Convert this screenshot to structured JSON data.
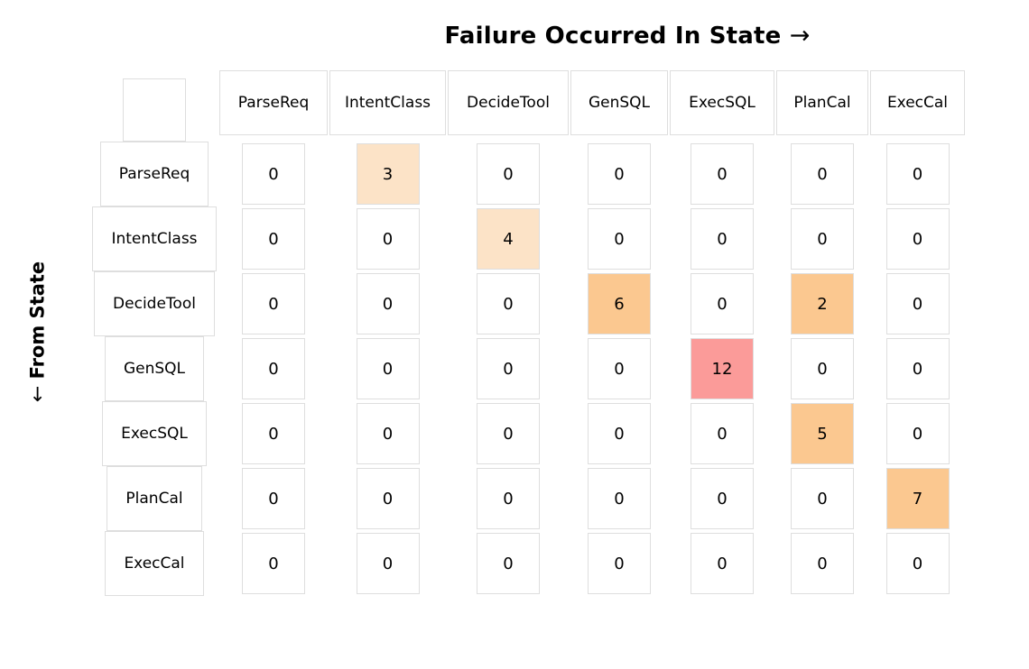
{
  "title": {
    "text": "Failure Occurred In State",
    "arrow": "→"
  },
  "y_axis_label": {
    "arrow": "←",
    "text": "From State"
  },
  "chart_data": {
    "type": "heatmap",
    "title": "Failure Occurred In State →",
    "xlabel": "Failure Occurred In State",
    "ylabel": "From State",
    "legend": "none",
    "columns": [
      "ParseReq",
      "IntentClass",
      "DecideTool",
      "GenSQL",
      "ExecSQL",
      "PlanCal",
      "ExecCal"
    ],
    "rows": [
      "ParseReq",
      "IntentClass",
      "DecideTool",
      "GenSQL",
      "ExecSQL",
      "PlanCal",
      "ExecCal"
    ],
    "values": [
      [
        0,
        3,
        0,
        0,
        0,
        0,
        0
      ],
      [
        0,
        0,
        4,
        0,
        0,
        0,
        0
      ],
      [
        0,
        0,
        0,
        6,
        0,
        2,
        0
      ],
      [
        0,
        0,
        0,
        0,
        12,
        0,
        0
      ],
      [
        0,
        0,
        0,
        0,
        0,
        5,
        0
      ],
      [
        0,
        0,
        0,
        0,
        0,
        0,
        7
      ],
      [
        0,
        0,
        0,
        0,
        0,
        0,
        0
      ]
    ],
    "cell_color_keys": [
      [
        "none",
        "low",
        "none",
        "none",
        "none",
        "none",
        "none"
      ],
      [
        "none",
        "none",
        "low",
        "none",
        "none",
        "none",
        "none"
      ],
      [
        "none",
        "none",
        "none",
        "mid",
        "none",
        "mid",
        "none"
      ],
      [
        "none",
        "none",
        "none",
        "none",
        "high",
        "none",
        "none"
      ],
      [
        "none",
        "none",
        "none",
        "none",
        "none",
        "mid",
        "none"
      ],
      [
        "none",
        "none",
        "none",
        "none",
        "none",
        "none",
        "mid"
      ],
      [
        "none",
        "none",
        "none",
        "none",
        "none",
        "none",
        "none"
      ]
    ],
    "value_range": [
      0,
      12
    ]
  },
  "colors": {
    "none": "#ffffff",
    "low": "#fce3c7",
    "mid": "#fbc890",
    "high": "#fb9b99",
    "border": "#dedede",
    "text": "#000000"
  }
}
